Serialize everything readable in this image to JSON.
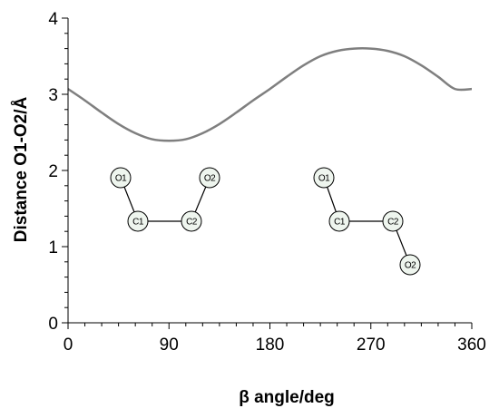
{
  "chart_data": {
    "type": "line",
    "xlabel": "β angle/deg",
    "ylabel": "Distance O1-O2/Å",
    "xlim": [
      0,
      360
    ],
    "ylim": [
      0,
      4
    ],
    "x_ticks": [
      "0",
      "90",
      "180",
      "270",
      "360"
    ],
    "y_ticks": [
      "0",
      "1",
      "2",
      "3",
      "4"
    ],
    "grid": false,
    "legend": "none",
    "series": [
      {
        "color": "#7f7f7f",
        "x": [
          0,
          15,
          30,
          45,
          60,
          75,
          90,
          105,
          120,
          135,
          150,
          165,
          180,
          195,
          210,
          225,
          240,
          255,
          270,
          285,
          300,
          315,
          330,
          345,
          360
        ],
        "y": [
          3.07,
          2.92,
          2.76,
          2.61,
          2.49,
          2.41,
          2.39,
          2.41,
          2.49,
          2.61,
          2.76,
          2.92,
          3.07,
          3.23,
          3.38,
          3.5,
          3.57,
          3.6,
          3.6,
          3.57,
          3.5,
          3.38,
          3.23,
          3.07,
          3.07
        ]
      }
    ]
  },
  "structures": [
    {
      "atoms": [
        {
          "id": "O1",
          "label": "O1"
        },
        {
          "id": "C1",
          "label": "C1"
        },
        {
          "id": "C2",
          "label": "C2"
        },
        {
          "id": "O2",
          "label": "O2"
        }
      ],
      "bonds": [
        [
          "O1",
          "C1"
        ],
        [
          "C1",
          "C2"
        ],
        [
          "C2",
          "O2"
        ]
      ]
    },
    {
      "atoms": [
        {
          "id": "O1",
          "label": "O1"
        },
        {
          "id": "C1",
          "label": "C1"
        },
        {
          "id": "C2",
          "label": "C2"
        },
        {
          "id": "O2",
          "label": "O2"
        }
      ],
      "bonds": [
        [
          "O1",
          "C1"
        ],
        [
          "C1",
          "C2"
        ],
        [
          "C2",
          "O2"
        ]
      ]
    }
  ],
  "colors": {
    "axis": "#000000",
    "curve": "#7f7f7f",
    "atom_fill": "#eef5ee",
    "atom_stroke": "#000000"
  }
}
